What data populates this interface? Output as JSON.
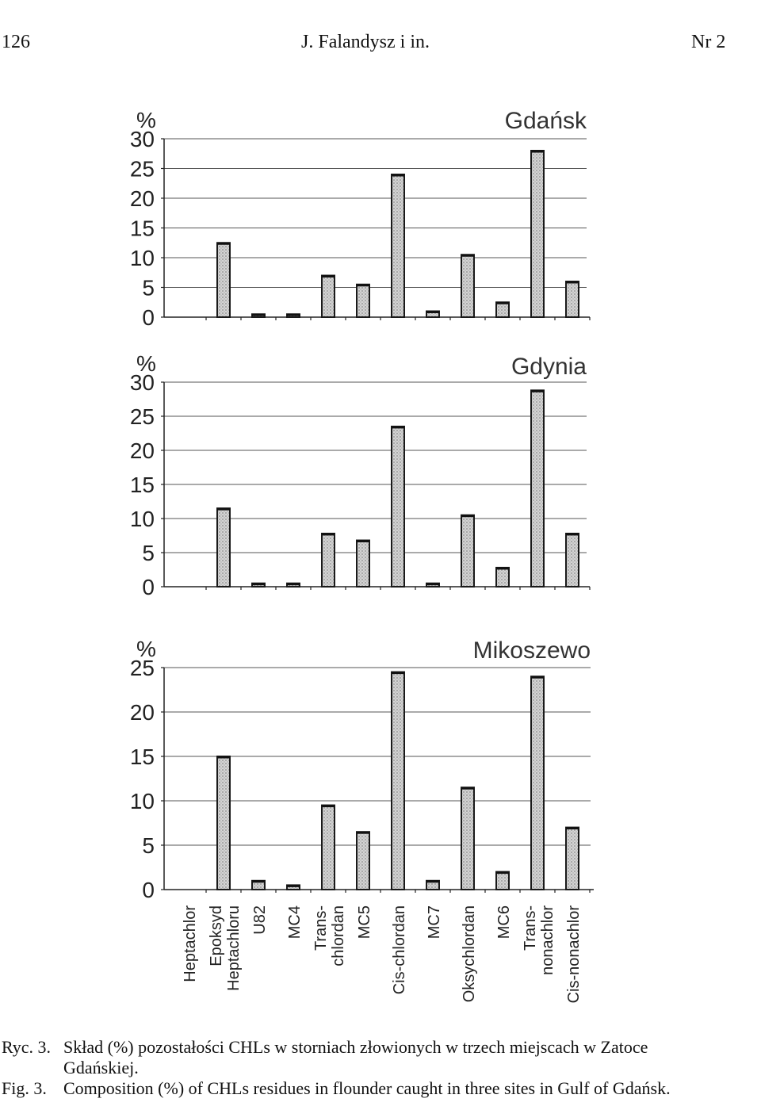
{
  "header": {
    "page_number": "126",
    "running_title": "J. Falandysz i in.",
    "issue": "Nr 2"
  },
  "chart_data": [
    {
      "type": "bar",
      "title": "Gdańsk",
      "ylabel": "%",
      "ylim": [
        0,
        30
      ],
      "yticks": [
        0,
        5,
        10,
        15,
        20,
        25,
        30
      ],
      "grid": true,
      "categories": [
        "Heptachlor",
        "Epoksyd Heptachloru",
        "U82",
        "MC4",
        "Trans-chlordan",
        "MC5",
        "Cis-chlordan",
        "MC7",
        "Oksychlordan",
        "MC6",
        "Trans-nonachlor",
        "Cis-nonachlor"
      ],
      "values": [
        0,
        12.5,
        0.5,
        0.5,
        7,
        5.5,
        24,
        1,
        10.5,
        2.5,
        28,
        6
      ]
    },
    {
      "type": "bar",
      "title": "Gdynia",
      "ylabel": "%",
      "ylim": [
        0,
        30
      ],
      "yticks": [
        0,
        5,
        10,
        15,
        20,
        25,
        30
      ],
      "grid": true,
      "categories": [
        "Heptachlor",
        "Epoksyd Heptachloru",
        "U82",
        "MC4",
        "Trans-chlordan",
        "MC5",
        "Cis-chlordan",
        "MC7",
        "Oksychlordan",
        "MC6",
        "Trans-nonachlor",
        "Cis-nonachlor"
      ],
      "values": [
        0,
        11.5,
        0.5,
        0.5,
        7.8,
        6.8,
        23.5,
        0.5,
        10.5,
        2.8,
        28.8,
        7.8
      ]
    },
    {
      "type": "bar",
      "title": "Mikoszewo",
      "ylabel": "%",
      "ylim": [
        0,
        25
      ],
      "yticks": [
        0,
        5,
        10,
        15,
        20,
        25
      ],
      "grid": true,
      "categories": [
        "Heptachlor",
        "Epoksyd Heptachloru",
        "U82",
        "MC4",
        "Trans-chlordan",
        "MC5",
        "Cis-chlordan",
        "MC7",
        "Oksychlordan",
        "MC6",
        "Trans-nonachlor",
        "Cis-nonachlor"
      ],
      "tick_labels": [
        [
          "Heptachlor"
        ],
        [
          "Epoksyd",
          "Heptachloru"
        ],
        [
          "U82"
        ],
        [
          "MC4"
        ],
        [
          "Trans-",
          "chlordan"
        ],
        [
          "MC5"
        ],
        [
          "Cis-chlordan"
        ],
        [
          "MC7"
        ],
        [
          "Oksychlordan"
        ],
        [
          "MC6"
        ],
        [
          "Trans-",
          "nonachlor"
        ],
        [
          "Cis-nonachlor"
        ]
      ],
      "values": [
        0,
        15,
        1,
        0.5,
        9.5,
        6.5,
        24.5,
        1,
        11.5,
        2,
        24,
        7
      ]
    }
  ],
  "caption": {
    "pl_label": "Ryc. 3.",
    "pl_text_1": "Skład (%) pozostałości CHLs w storniach złowionych w trzech miejscach w Zatoce",
    "pl_text_2": "Gdańskiej.",
    "en_label": "Fig. 3.",
    "en_text": "Composition (%) of CHLs residues in flounder caught in three sites in Gulf of Gdańsk."
  }
}
